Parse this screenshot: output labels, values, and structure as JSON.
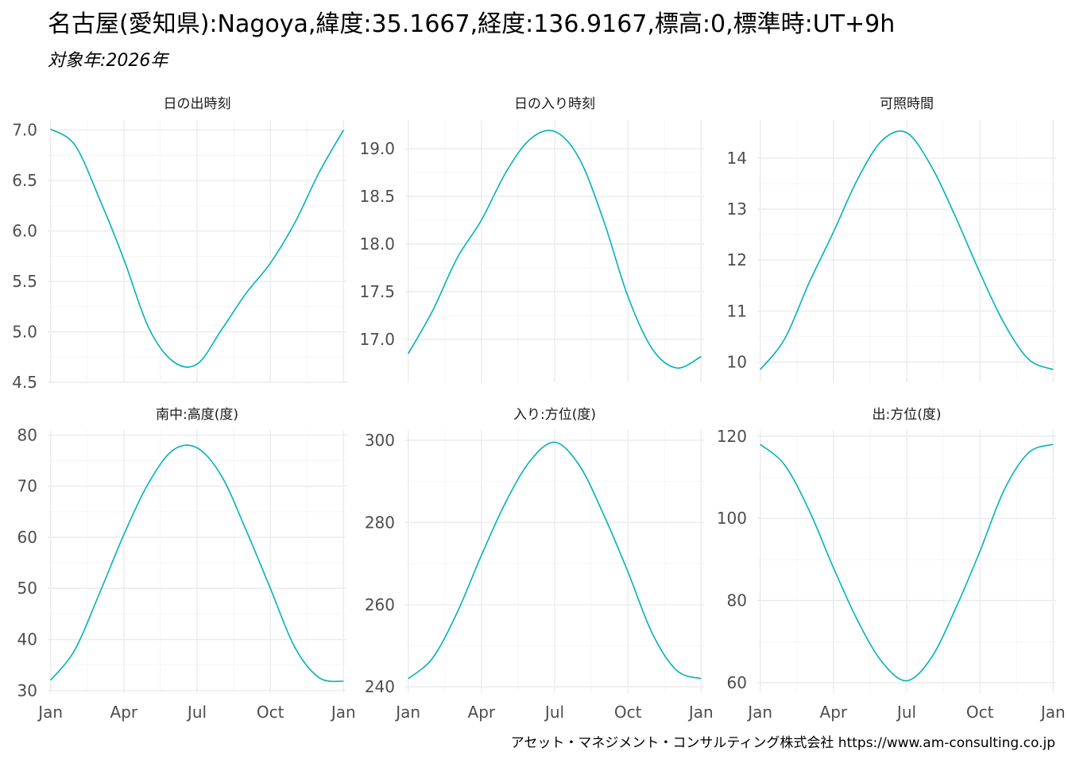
{
  "title": "名古屋(愛知県):Nagoya,緯度:35.1667,経度:136.9167,標高:0,標準時:UT+9h",
  "subtitle": "対象年:2026年",
  "caption": "アセット・マネジメント・コンサルティング株式会社 https://www.am-consulting.co.jp",
  "colors": {
    "series": "#00b2b8"
  },
  "chart_data": [
    {
      "type": "line",
      "title": "日の出時刻",
      "x_months": [
        1,
        2,
        3,
        4,
        5,
        6,
        7,
        8,
        9,
        10,
        11,
        12,
        13
      ],
      "y": [
        7.01,
        6.85,
        6.32,
        5.72,
        5.05,
        4.71,
        4.68,
        5.02,
        5.38,
        5.68,
        6.08,
        6.58,
        7.0
      ],
      "ylim": [
        4.5,
        7.1
      ],
      "yticks": [
        4.5,
        5.0,
        5.5,
        6.0,
        6.5,
        7.0
      ],
      "ytick_labels": [
        "4.5",
        "5.0",
        "5.5",
        "6.0",
        "6.5",
        "7.0"
      ],
      "show_xaxis": false
    },
    {
      "type": "line",
      "title": "日の入り時刻",
      "x_months": [
        1,
        2,
        3,
        4,
        5,
        6,
        7,
        8,
        9,
        10,
        11,
        12,
        13
      ],
      "y": [
        16.85,
        17.3,
        17.85,
        18.25,
        18.75,
        19.1,
        19.18,
        18.9,
        18.25,
        17.45,
        16.9,
        16.7,
        16.82
      ],
      "ylim": [
        16.55,
        19.3
      ],
      "yticks": [
        17.0,
        17.5,
        18.0,
        18.5,
        19.0
      ],
      "ytick_labels": [
        "17.0",
        "17.5",
        "18.0",
        "18.5",
        "19.0"
      ],
      "show_xaxis": false
    },
    {
      "type": "line",
      "title": "可照時間",
      "x_months": [
        1,
        2,
        3,
        4,
        5,
        6,
        7,
        8,
        9,
        10,
        11,
        12,
        13
      ],
      "y": [
        9.85,
        10.45,
        11.55,
        12.55,
        13.6,
        14.35,
        14.5,
        13.85,
        12.85,
        11.75,
        10.75,
        10.05,
        9.85
      ],
      "ylim": [
        9.6,
        14.75
      ],
      "yticks": [
        10,
        11,
        12,
        13,
        14
      ],
      "ytick_labels": [
        "10",
        "11",
        "12",
        "13",
        "14"
      ],
      "show_xaxis": false
    },
    {
      "type": "line",
      "title": "南中:高度(度)",
      "x_months": [
        1,
        2,
        3,
        4,
        5,
        6,
        7,
        8,
        9,
        10,
        11,
        12,
        13
      ],
      "y": [
        32.0,
        38.0,
        49.0,
        60.5,
        70.5,
        77.0,
        77.5,
        72.0,
        61.5,
        50.0,
        38.5,
        32.5,
        31.8
      ],
      "ylim": [
        29.5,
        81.0
      ],
      "yticks": [
        30,
        40,
        50,
        60,
        70,
        80
      ],
      "ytick_labels": [
        "30",
        "40",
        "50",
        "60",
        "70",
        "80"
      ],
      "show_xaxis": true
    },
    {
      "type": "line",
      "title": "入り:方位(度)",
      "x_months": [
        1,
        2,
        3,
        4,
        5,
        6,
        7,
        8,
        9,
        10,
        11,
        12,
        13
      ],
      "y": [
        242.0,
        247.0,
        258.0,
        272.0,
        285.0,
        295.0,
        299.5,
        294.0,
        282.0,
        268.0,
        253.0,
        244.0,
        242.0
      ],
      "ylim": [
        238.5,
        302.5
      ],
      "yticks": [
        240,
        260,
        280,
        300
      ],
      "ytick_labels": [
        "240",
        "260",
        "280",
        "300"
      ],
      "show_xaxis": true
    },
    {
      "type": "line",
      "title": "出:方位(度)",
      "x_months": [
        1,
        2,
        3,
        4,
        5,
        6,
        7,
        8,
        9,
        10,
        11,
        12,
        13
      ],
      "y": [
        118.0,
        113.0,
        102.0,
        88.0,
        75.0,
        65.0,
        60.5,
        66.0,
        78.0,
        92.0,
        107.0,
        116.0,
        118.0
      ],
      "ylim": [
        57.5,
        121.5
      ],
      "yticks": [
        60,
        80,
        100,
        120
      ],
      "ytick_labels": [
        "60",
        "80",
        "100",
        "120"
      ],
      "show_xaxis": true
    }
  ],
  "x_axis": {
    "ticks_months": [
      1,
      4,
      7,
      10,
      13
    ],
    "labels": [
      "Jan",
      "Apr",
      "Jul",
      "Oct",
      "Jan"
    ],
    "range_months": [
      0.88,
      13.12
    ]
  }
}
